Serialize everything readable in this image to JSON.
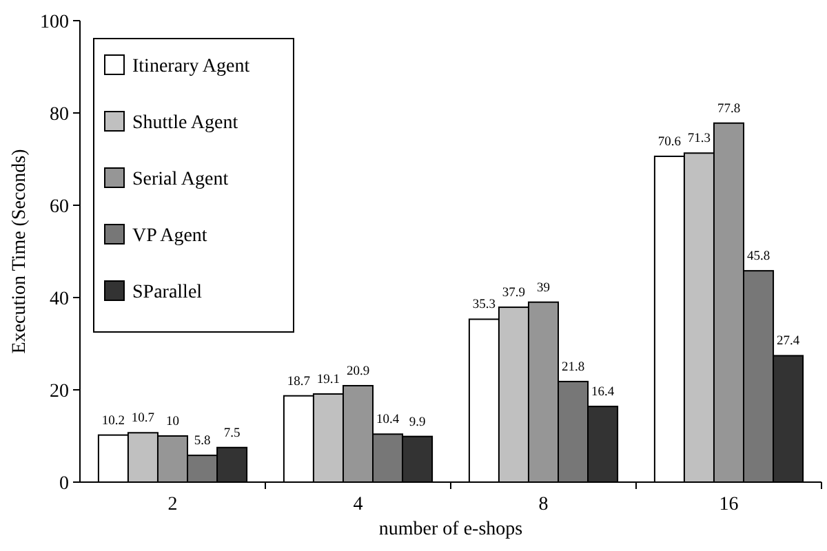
{
  "chart_data": {
    "type": "bar",
    "xlabel": "number of e-shops",
    "ylabel": "Execution Time (Seconds)",
    "categories": [
      "2",
      "4",
      "8",
      "16"
    ],
    "series": [
      {
        "name": "Itinerary Agent",
        "color": "#ffffff",
        "values": [
          10.2,
          18.7,
          35.3,
          70.6
        ]
      },
      {
        "name": "Shuttle Agent",
        "color": "#c0c0c0",
        "values": [
          10.7,
          19.1,
          37.9,
          71.3
        ]
      },
      {
        "name": "Serial Agent",
        "color": "#969696",
        "values": [
          10,
          20.9,
          39,
          77.8
        ]
      },
      {
        "name": "VP Agent",
        "color": "#777777",
        "values": [
          5.8,
          10.4,
          21.8,
          45.8
        ]
      },
      {
        "name": "SParallel",
        "color": "#333333",
        "values": [
          7.5,
          9.9,
          16.4,
          27.4
        ]
      }
    ],
    "ylim": [
      0,
      100
    ],
    "yticks": [
      0,
      20,
      40,
      60,
      80,
      100
    ],
    "data_labels": true,
    "legend": "top left",
    "grid": false
  }
}
